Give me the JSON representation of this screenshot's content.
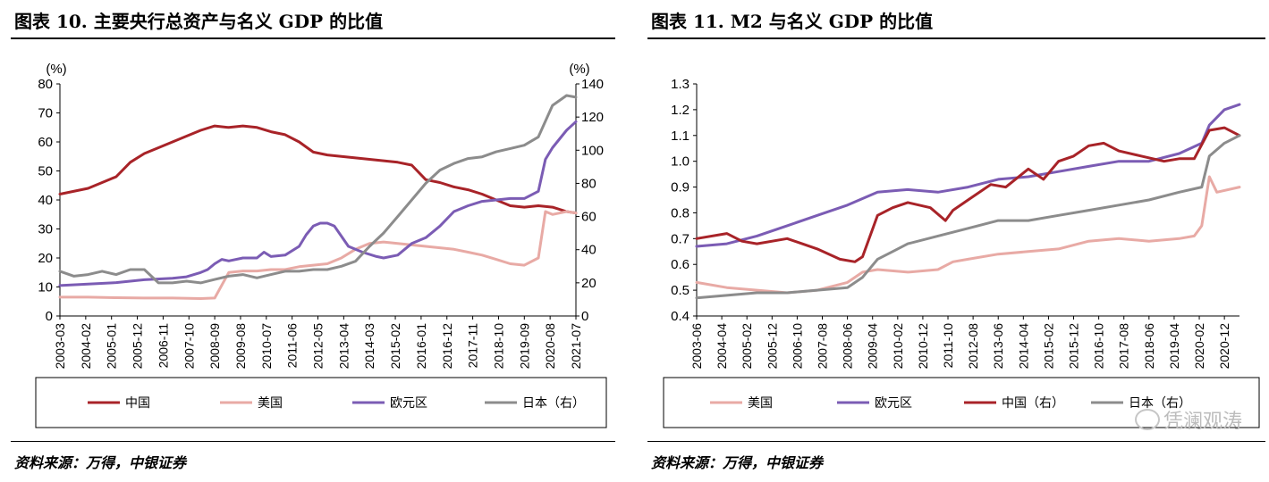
{
  "panels": {
    "left": {
      "title": "图表 10. 主要央行总资产与名义 GDP 的比值",
      "source": "资料来源：万得，中银证券"
    },
    "right": {
      "title": "图表 11. M2 与名义 GDP 的比值",
      "source": "资料来源：万得，中银证券"
    }
  },
  "watermark": {
    "text": "凭澜观涛"
  },
  "chart_data": [
    {
      "type": "line",
      "title": "图表 10. 主要央行总资产与名义 GDP 的比值",
      "ylabel_left": "(%)",
      "ylabel_right": "(%)",
      "ylim_left": [
        0,
        80
      ],
      "ylim_right": [
        0,
        140
      ],
      "yticks_left": [
        "0",
        "10",
        "20",
        "30",
        "40",
        "50",
        "60",
        "70",
        "80"
      ],
      "yticks_right": [
        "0",
        "20",
        "40",
        "60",
        "80",
        "100",
        "120",
        "140"
      ],
      "x_start": "2003-03",
      "x_end": "2021-07",
      "xtick_labels": [
        "2003-03",
        "2004-02",
        "2005-01",
        "2005-12",
        "2006-11",
        "2007-10",
        "2008-09",
        "2009-08",
        "2010-07",
        "2011-06",
        "2012-05",
        "2013-04",
        "2014-03",
        "2015-02",
        "2016-01",
        "2016-12",
        "2017-11",
        "2018-10",
        "2019-09",
        "2020-08",
        "2021-07"
      ],
      "legend_position": "bottom",
      "grid": false,
      "series": [
        {
          "name": "中国",
          "axis": "left",
          "color": "#a82328",
          "x": [
            "2003-03",
            "2004-03",
            "2004-09",
            "2005-03",
            "2005-09",
            "2006-03",
            "2006-09",
            "2007-03",
            "2007-09",
            "2008-03",
            "2008-09",
            "2009-03",
            "2009-09",
            "2010-03",
            "2010-09",
            "2011-03",
            "2011-09",
            "2012-03",
            "2012-09",
            "2013-03",
            "2013-09",
            "2014-03",
            "2014-09",
            "2015-03",
            "2015-09",
            "2016-03",
            "2016-09",
            "2017-03",
            "2017-09",
            "2018-03",
            "2018-09",
            "2019-03",
            "2019-09",
            "2020-03",
            "2020-09",
            "2021-03",
            "2021-07"
          ],
          "values": [
            42,
            44,
            46,
            48,
            53,
            56,
            58,
            60,
            62,
            64,
            65.5,
            65,
            65.5,
            65,
            63.5,
            62.5,
            60,
            56.5,
            55.5,
            55,
            54.5,
            54,
            53.5,
            53,
            52,
            47,
            46,
            44.5,
            43.5,
            42,
            40,
            38,
            37.5,
            38,
            37.5,
            36,
            35.5
          ]
        },
        {
          "name": "美国",
          "axis": "left",
          "color": "#e8aaa5",
          "x": [
            "2003-03",
            "2004-03",
            "2005-03",
            "2006-03",
            "2007-03",
            "2008-03",
            "2008-09",
            "2009-03",
            "2009-09",
            "2010-03",
            "2010-09",
            "2011-03",
            "2011-09",
            "2012-03",
            "2012-09",
            "2013-03",
            "2013-09",
            "2014-03",
            "2014-09",
            "2015-03",
            "2015-09",
            "2016-03",
            "2016-09",
            "2017-03",
            "2017-09",
            "2018-03",
            "2018-09",
            "2019-03",
            "2019-09",
            "2020-03",
            "2020-06",
            "2020-09",
            "2021-03",
            "2021-07"
          ],
          "values": [
            6.5,
            6.5,
            6.3,
            6.2,
            6.2,
            6.0,
            6.2,
            15,
            15.5,
            15.5,
            16,
            16,
            17,
            17.5,
            18,
            20,
            23,
            25,
            25.5,
            25,
            24.5,
            24,
            23.5,
            23,
            22,
            21,
            19.5,
            18,
            17.5,
            20,
            36,
            35,
            36,
            35.5
          ]
        },
        {
          "name": "欧元区",
          "axis": "left",
          "color": "#7b5cb4",
          "x": [
            "2003-03",
            "2004-03",
            "2005-03",
            "2006-03",
            "2007-03",
            "2007-09",
            "2008-03",
            "2008-06",
            "2008-09",
            "2008-12",
            "2009-03",
            "2009-09",
            "2010-03",
            "2010-06",
            "2010-09",
            "2011-03",
            "2011-09",
            "2011-12",
            "2012-03",
            "2012-06",
            "2012-09",
            "2012-12",
            "2013-06",
            "2013-12",
            "2014-06",
            "2014-09",
            "2015-03",
            "2015-09",
            "2016-03",
            "2016-09",
            "2017-03",
            "2017-09",
            "2018-03",
            "2018-09",
            "2019-03",
            "2019-09",
            "2020-03",
            "2020-06",
            "2020-09",
            "2021-03",
            "2021-07"
          ],
          "values": [
            10.5,
            11,
            11.5,
            12.5,
            13,
            13.5,
            15,
            16,
            18,
            19.5,
            19,
            20,
            20,
            22,
            20.5,
            21,
            24,
            28,
            31,
            32,
            32,
            31,
            24,
            22,
            20.5,
            20,
            21,
            25,
            27,
            31,
            36,
            38,
            39.5,
            40,
            40.5,
            40.5,
            43,
            54,
            58,
            64,
            67
          ]
        },
        {
          "name": "日本（右）",
          "axis": "right",
          "color": "#8c8c8c",
          "x": [
            "2003-03",
            "2003-09",
            "2004-03",
            "2004-09",
            "2005-03",
            "2005-09",
            "2006-03",
            "2006-09",
            "2007-03",
            "2007-09",
            "2008-03",
            "2008-09",
            "2009-03",
            "2009-09",
            "2010-03",
            "2010-09",
            "2011-03",
            "2011-09",
            "2012-03",
            "2012-09",
            "2013-03",
            "2013-09",
            "2014-03",
            "2014-09",
            "2015-03",
            "2015-09",
            "2016-03",
            "2016-09",
            "2017-03",
            "2017-09",
            "2018-03",
            "2018-09",
            "2019-03",
            "2019-09",
            "2020-03",
            "2020-09",
            "2021-03",
            "2021-07"
          ],
          "values": [
            27,
            24,
            25,
            27,
            25,
            28,
            28,
            20,
            20,
            21,
            20,
            22,
            24,
            25,
            23,
            25,
            27,
            27,
            28,
            28,
            30,
            33,
            42,
            50,
            60,
            70,
            80,
            88,
            92,
            95,
            96,
            99,
            101,
            103,
            108,
            127,
            133,
            132
          ]
        }
      ]
    },
    {
      "type": "line",
      "title": "图表 11. M2 与名义 GDP 的比值",
      "ylim_left": [
        0.4,
        1.3
      ],
      "ylim_right": [
        0.4,
        1.3
      ],
      "yticks_left": [
        "0.4",
        "0.5",
        "0.6",
        "0.7",
        "0.8",
        "0.9",
        "1.0",
        "1.1",
        "1.2",
        "1.3"
      ],
      "yticks_right": [],
      "x_start": "2003-06",
      "x_end": "2021-06",
      "xtick_labels": [
        "2003-06",
        "2004-04",
        "2005-02",
        "2005-12",
        "2006-10",
        "2007-08",
        "2008-06",
        "2009-04",
        "2010-02",
        "2010-12",
        "2011-10",
        "2012-08",
        "2013-06",
        "2014-04",
        "2015-02",
        "2015-12",
        "2016-10",
        "2017-08",
        "2018-06",
        "2019-04",
        "2020-02",
        "2020-12"
      ],
      "legend_position": "bottom",
      "grid": false,
      "series": [
        {
          "name": "美国",
          "axis": "left",
          "color": "#e8aaa5",
          "x": [
            "2003-06",
            "2004-06",
            "2005-06",
            "2006-06",
            "2007-06",
            "2008-06",
            "2008-12",
            "2009-06",
            "2010-06",
            "2011-06",
            "2011-12",
            "2012-06",
            "2013-06",
            "2014-06",
            "2015-06",
            "2016-06",
            "2017-06",
            "2018-06",
            "2019-06",
            "2019-12",
            "2020-03",
            "2020-06",
            "2020-09",
            "2021-06"
          ],
          "values": [
            0.53,
            0.51,
            0.5,
            0.49,
            0.5,
            0.53,
            0.57,
            0.58,
            0.57,
            0.58,
            0.61,
            0.62,
            0.64,
            0.65,
            0.66,
            0.69,
            0.7,
            0.69,
            0.7,
            0.71,
            0.75,
            0.94,
            0.88,
            0.9
          ]
        },
        {
          "name": "欧元区",
          "axis": "left",
          "color": "#7b5cb4",
          "x": [
            "2003-06",
            "2004-06",
            "2005-06",
            "2006-06",
            "2007-06",
            "2008-06",
            "2009-06",
            "2010-06",
            "2011-06",
            "2012-06",
            "2013-06",
            "2014-06",
            "2015-06",
            "2016-06",
            "2017-06",
            "2018-06",
            "2019-06",
            "2020-03",
            "2020-06",
            "2020-12",
            "2021-06"
          ],
          "values": [
            0.67,
            0.68,
            0.71,
            0.75,
            0.79,
            0.83,
            0.88,
            0.89,
            0.88,
            0.9,
            0.93,
            0.94,
            0.96,
            0.98,
            1.0,
            1.0,
            1.03,
            1.07,
            1.14,
            1.2,
            1.22
          ]
        },
        {
          "name": "中国（右）",
          "axis": "right",
          "color": "#a82328",
          "x": [
            "2003-06",
            "2004-06",
            "2004-12",
            "2005-06",
            "2006-06",
            "2006-12",
            "2007-06",
            "2008-03",
            "2008-09",
            "2008-12",
            "2009-06",
            "2009-12",
            "2010-06",
            "2011-03",
            "2011-09",
            "2011-12",
            "2012-06",
            "2013-03",
            "2013-09",
            "2014-06",
            "2014-12",
            "2015-06",
            "2015-12",
            "2016-06",
            "2016-12",
            "2017-06",
            "2018-03",
            "2018-12",
            "2019-06",
            "2019-12",
            "2020-06",
            "2020-12",
            "2021-06"
          ],
          "values": [
            0.7,
            0.72,
            0.69,
            0.68,
            0.7,
            0.68,
            0.66,
            0.62,
            0.61,
            0.63,
            0.79,
            0.82,
            0.84,
            0.82,
            0.77,
            0.81,
            0.85,
            0.91,
            0.9,
            0.97,
            0.93,
            1.0,
            1.02,
            1.06,
            1.07,
            1.04,
            1.02,
            1.0,
            1.01,
            1.01,
            1.12,
            1.13,
            1.1
          ]
        },
        {
          "name": "日本（右）",
          "axis": "right",
          "color": "#8c8c8c",
          "x": [
            "2003-06",
            "2004-06",
            "2005-06",
            "2006-06",
            "2007-06",
            "2008-06",
            "2008-12",
            "2009-06",
            "2009-12",
            "2010-06",
            "2011-06",
            "2012-06",
            "2013-06",
            "2014-06",
            "2015-06",
            "2016-06",
            "2017-06",
            "2018-06",
            "2019-06",
            "2020-03",
            "2020-06",
            "2020-12",
            "2021-06"
          ],
          "values": [
            0.47,
            0.48,
            0.49,
            0.49,
            0.5,
            0.51,
            0.55,
            0.62,
            0.65,
            0.68,
            0.71,
            0.74,
            0.77,
            0.77,
            0.79,
            0.81,
            0.83,
            0.85,
            0.88,
            0.9,
            1.02,
            1.07,
            1.1
          ]
        }
      ]
    }
  ]
}
